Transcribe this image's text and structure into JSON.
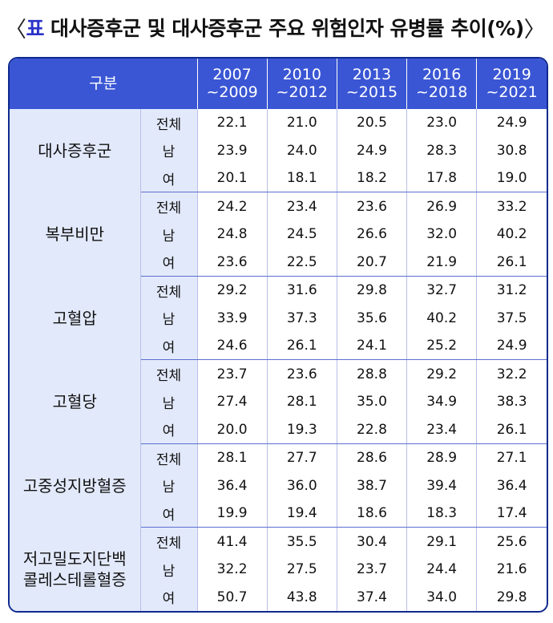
{
  "title": {
    "open_bracket": "〈",
    "prefix": "표",
    "text": "대사증후군 및 대사증후군 주요 위험인자 유병률 추이(%)",
    "close_bracket": "〉"
  },
  "table": {
    "corner_header": "구분",
    "periods": [
      {
        "line1": "2007",
        "line2": "~2009"
      },
      {
        "line1": "2010",
        "line2": "~2012"
      },
      {
        "line1": "2013",
        "line2": "~2015"
      },
      {
        "line1": "2016",
        "line2": "~2018"
      },
      {
        "line1": "2019",
        "line2": "~2021"
      }
    ],
    "groups": [
      {
        "category": [
          "대사증후군"
        ],
        "rows": [
          {
            "sub": "전체",
            "values": [
              "22.1",
              "21.0",
              "20.5",
              "23.0",
              "24.9"
            ]
          },
          {
            "sub": "남",
            "values": [
              "23.9",
              "24.0",
              "24.9",
              "28.3",
              "30.8"
            ]
          },
          {
            "sub": "여",
            "values": [
              "20.1",
              "18.1",
              "18.2",
              "17.8",
              "19.0"
            ]
          }
        ]
      },
      {
        "category": [
          "복부비만"
        ],
        "rows": [
          {
            "sub": "전체",
            "values": [
              "24.2",
              "23.4",
              "23.6",
              "26.9",
              "33.2"
            ]
          },
          {
            "sub": "남",
            "values": [
              "24.8",
              "24.5",
              "26.6",
              "32.0",
              "40.2"
            ]
          },
          {
            "sub": "여",
            "values": [
              "23.6",
              "22.5",
              "20.7",
              "21.9",
              "26.1"
            ]
          }
        ]
      },
      {
        "category": [
          "고혈압"
        ],
        "rows": [
          {
            "sub": "전체",
            "values": [
              "29.2",
              "31.6",
              "29.8",
              "32.7",
              "31.2"
            ]
          },
          {
            "sub": "남",
            "values": [
              "33.9",
              "37.3",
              "35.6",
              "40.2",
              "37.5"
            ]
          },
          {
            "sub": "여",
            "values": [
              "24.6",
              "26.1",
              "24.1",
              "25.2",
              "24.9"
            ]
          }
        ]
      },
      {
        "category": [
          "고혈당"
        ],
        "rows": [
          {
            "sub": "전체",
            "values": [
              "23.7",
              "23.6",
              "28.8",
              "29.2",
              "32.2"
            ]
          },
          {
            "sub": "남",
            "values": [
              "27.4",
              "28.1",
              "35.0",
              "34.9",
              "38.3"
            ]
          },
          {
            "sub": "여",
            "values": [
              "20.0",
              "19.3",
              "22.8",
              "23.4",
              "26.1"
            ]
          }
        ]
      },
      {
        "category": [
          "고중성지방혈증"
        ],
        "rows": [
          {
            "sub": "전체",
            "values": [
              "28.1",
              "27.7",
              "28.6",
              "28.9",
              "27.1"
            ]
          },
          {
            "sub": "남",
            "values": [
              "36.4",
              "36.0",
              "38.7",
              "39.4",
              "36.4"
            ]
          },
          {
            "sub": "여",
            "values": [
              "19.9",
              "19.4",
              "18.6",
              "18.3",
              "17.4"
            ]
          }
        ]
      },
      {
        "category": [
          "저고밀도지단백",
          "콜레스테롤혈증"
        ],
        "rows": [
          {
            "sub": "전체",
            "values": [
              "41.4",
              "35.5",
              "30.4",
              "29.1",
              "25.6"
            ]
          },
          {
            "sub": "남",
            "values": [
              "32.2",
              "27.5",
              "23.7",
              "24.4",
              "21.6"
            ]
          },
          {
            "sub": "여",
            "values": [
              "50.7",
              "43.8",
              "37.4",
              "34.0",
              "29.8"
            ]
          }
        ]
      }
    ]
  },
  "colors": {
    "header_bg": "#3a56d4",
    "border": "#0f2a8e",
    "label_bg": "#e2e9fb",
    "title_accent": "#2b34c9"
  }
}
